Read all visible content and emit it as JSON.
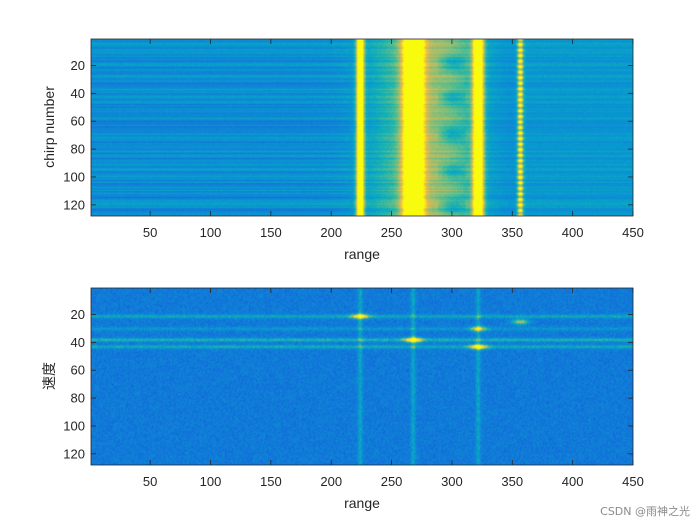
{
  "watermark": "CSDN @雨神之光",
  "chart_data": [
    {
      "type": "heatmap",
      "xlabel": "range",
      "ylabel": "chirp number",
      "xlim": [
        1,
        450
      ],
      "ylim": [
        1,
        128
      ],
      "y_reversed": true,
      "xticks": [
        50,
        100,
        150,
        200,
        250,
        300,
        350,
        400,
        450
      ],
      "yticks": [
        20,
        40,
        60,
        80,
        100,
        120
      ],
      "colormap": "parula",
      "range_peaks": [
        224,
        268,
        322,
        357
      ],
      "description_values": {
        "background_level": 0.35,
        "peak_levels": [
          0.9,
          1.0,
          0.95,
          0.75
        ]
      }
    },
    {
      "type": "heatmap",
      "xlabel": "range",
      "ylabel": "速度",
      "xlim": [
        1,
        450
      ],
      "ylim": [
        1,
        128
      ],
      "y_reversed": true,
      "xticks": [
        50,
        100,
        150,
        200,
        250,
        300,
        350,
        400,
        450
      ],
      "yticks": [
        20,
        40,
        60,
        80,
        100,
        120
      ],
      "colormap": "parula",
      "velocity_lines": [
        21,
        30,
        38,
        43
      ],
      "range_columns": [
        224,
        268,
        322
      ],
      "hot_spots": [
        {
          "range": 224,
          "velocity": 21,
          "level": 0.9
        },
        {
          "range": 268,
          "velocity": 38,
          "level": 1.0
        },
        {
          "range": 322,
          "velocity": 43,
          "level": 0.95
        },
        {
          "range": 322,
          "velocity": 30,
          "level": 0.7
        },
        {
          "range": 357,
          "velocity": 25,
          "level": 0.75
        }
      ]
    }
  ]
}
